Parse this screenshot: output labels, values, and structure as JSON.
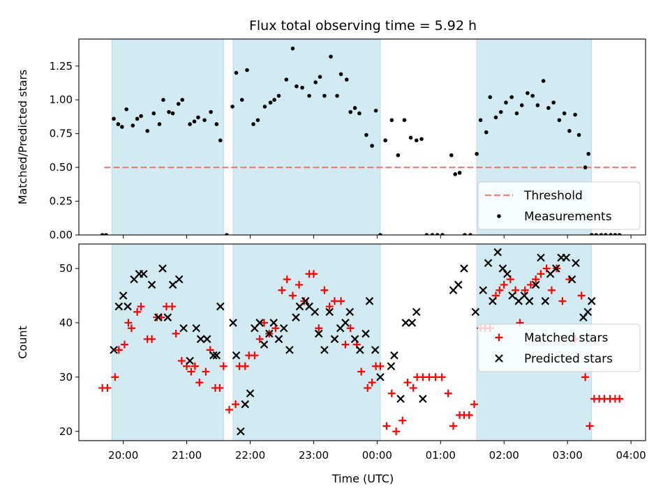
{
  "chart_data": {
    "title": "Flux total observing time = 5.92 h",
    "xlabel": "Time (UTC)",
    "x_ticks": [
      "20:00",
      "21:00",
      "22:00",
      "23:00",
      "00:00",
      "01:00",
      "02:00",
      "03:00",
      "04:00"
    ],
    "x_tick_hours": [
      20,
      21,
      22,
      23,
      24,
      25,
      26,
      27,
      28
    ],
    "xlim": [
      19.3,
      28.23
    ],
    "shaded_intervals": [
      [
        19.82,
        21.58
      ],
      [
        21.73,
        24.05
      ],
      [
        25.57,
        27.38
      ]
    ],
    "shade_color": "#add8e6",
    "grid": false,
    "panels": [
      {
        "type": "scatter",
        "ylabel": "Matched/Predicted stars",
        "ylim": [
          0,
          1.45
        ],
        "y_ticks": [
          "0.00",
          "0.25",
          "0.50",
          "0.75",
          "1.00",
          "1.25"
        ],
        "y_tick_values": [
          0,
          0.25,
          0.5,
          0.75,
          1.0,
          1.25
        ],
        "legend_placement": "lower-right",
        "threshold": {
          "name": "Threshold",
          "value": 0.5,
          "x_range": [
            19.7,
            28.08
          ],
          "color": "#f08080"
        },
        "series": [
          {
            "name": "Measurements",
            "marker": "dot",
            "color": "#000000",
            "x": [
              19.67,
              19.73,
              19.85,
              19.92,
              19.98,
              20.05,
              20.15,
              20.22,
              20.28,
              20.38,
              20.48,
              20.57,
              20.63,
              20.72,
              20.78,
              20.87,
              20.93,
              21.05,
              21.12,
              21.18,
              21.28,
              21.38,
              21.47,
              21.53,
              21.63,
              21.72,
              21.78,
              21.87,
              21.95,
              22.05,
              22.12,
              22.23,
              22.32,
              22.38,
              22.45,
              22.57,
              22.67,
              22.73,
              22.82,
              22.93,
              23.03,
              23.1,
              23.17,
              23.27,
              23.37,
              23.43,
              23.52,
              23.58,
              23.65,
              23.72,
              23.83,
              23.92,
              23.98,
              24.05,
              24.13,
              24.23,
              24.33,
              24.43,
              24.53,
              24.62,
              24.7,
              24.78,
              24.87,
              24.95,
              25.03,
              25.17,
              25.23,
              25.3,
              25.38,
              25.47,
              25.57,
              25.63,
              25.72,
              25.78,
              25.87,
              25.95,
              26.03,
              26.12,
              26.2,
              26.28,
              26.37,
              26.45,
              26.53,
              26.62,
              26.7,
              26.78,
              26.87,
              26.95,
              27.03,
              27.12,
              27.18,
              27.28,
              27.33,
              27.38,
              27.45,
              27.53,
              27.6,
              27.68,
              27.75,
              27.82
            ],
            "y": [
              0,
              0,
              0.86,
              0.82,
              0.8,
              0.93,
              0.81,
              0.86,
              0.88,
              0.77,
              0.9,
              0.82,
              1.0,
              0.91,
              0.9,
              0.97,
              1.0,
              0.82,
              0.84,
              0.87,
              0.85,
              0.91,
              0.82,
              0.7,
              0,
              0.95,
              1.2,
              1.0,
              1.22,
              0.82,
              0.85,
              0.95,
              0.98,
              1.0,
              1.03,
              1.15,
              1.38,
              1.1,
              1.09,
              1.03,
              1.13,
              1.17,
              1.03,
              1.32,
              1.03,
              1.19,
              1.15,
              0.91,
              0.94,
              0.9,
              0.74,
              0.66,
              0.92,
              0,
              0.7,
              0.85,
              0.59,
              0.85,
              0.72,
              0.7,
              0.71,
              0,
              0,
              0,
              0,
              0.59,
              0.45,
              0.46,
              0,
              0,
              0.6,
              0.85,
              0.76,
              1.02,
              0.87,
              0.91,
              0.98,
              1.02,
              0.9,
              0.96,
              1.05,
              1.03,
              0.96,
              1.14,
              0.94,
              0.98,
              0.85,
              0.9,
              0.77,
              0.89,
              0.74,
              0.5,
              0.6,
              0,
              0,
              0,
              0,
              0,
              0,
              0
            ]
          }
        ]
      },
      {
        "type": "scatter",
        "ylabel": "Count",
        "ylim": [
          18.3,
          54.5
        ],
        "y_ticks": [
          "20",
          "30",
          "40",
          "50"
        ],
        "y_tick_values": [
          20,
          30,
          40,
          50
        ],
        "legend_placement": "center-right",
        "series": [
          {
            "name": "Matched stars",
            "marker": "plus",
            "color": "#ff0000",
            "x": [
              19.67,
              19.75,
              19.87,
              19.93,
              20.02,
              20.08,
              20.13,
              20.22,
              20.28,
              20.38,
              20.45,
              20.53,
              20.6,
              20.68,
              20.77,
              20.83,
              20.92,
              21.0,
              21.07,
              21.13,
              21.2,
              21.3,
              21.37,
              21.45,
              21.52,
              21.58,
              21.67,
              21.77,
              21.83,
              21.92,
              21.98,
              22.07,
              22.15,
              22.22,
              22.3,
              22.4,
              22.5,
              22.58,
              22.67,
              22.77,
              22.85,
              22.93,
              23.0,
              23.08,
              23.17,
              23.25,
              23.33,
              23.43,
              23.5,
              23.58,
              23.68,
              23.75,
              23.85,
              23.92,
              23.98,
              24.05,
              24.15,
              24.23,
              24.3,
              24.4,
              24.48,
              24.57,
              24.63,
              24.72,
              24.82,
              24.92,
              25.02,
              25.12,
              25.2,
              25.3,
              25.37,
              25.45,
              25.53,
              25.63,
              25.7,
              25.78,
              25.87,
              25.93,
              26.0,
              26.1,
              26.18,
              26.25,
              26.33,
              26.42,
              26.5,
              26.58,
              26.67,
              26.75,
              26.83,
              26.92,
              27.03,
              27.12,
              27.22,
              27.28,
              27.35,
              27.42,
              27.5,
              27.58,
              27.67,
              27.75,
              27.82
            ],
            "y": [
              28,
              28,
              30,
              35,
              36,
              40,
              39,
              42,
              43,
              37,
              37,
              41,
              41,
              43,
              43,
              38,
              33,
              32,
              31,
              32,
              29,
              31,
              35,
              28,
              28,
              32,
              24,
              25,
              32,
              32,
              34,
              34,
              37,
              40,
              38,
              39,
              46,
              48,
              45,
              47,
              44,
              49,
              49,
              39,
              46,
              43,
              44,
              44,
              36,
              39,
              36,
              31,
              28,
              29,
              32,
              32,
              21,
              27,
              20,
              22,
              29,
              28,
              30,
              30,
              30,
              30,
              30,
              27,
              21,
              23,
              23,
              23,
              25,
              39,
              39,
              39,
              45,
              46,
              47,
              48,
              46,
              40,
              46,
              47,
              48,
              49,
              50,
              46,
              50,
              44,
              48,
              37,
              45,
              30,
              21,
              26,
              26,
              26,
              26,
              26,
              26
            ]
          },
          {
            "name": "Predicted stars",
            "marker": "x",
            "color": "#000000",
            "x": [
              19.85,
              19.93,
              20.0,
              20.07,
              20.17,
              20.25,
              20.32,
              20.45,
              20.55,
              20.62,
              20.7,
              20.78,
              20.88,
              20.95,
              21.05,
              21.15,
              21.22,
              21.32,
              21.42,
              21.47,
              21.53,
              21.73,
              21.78,
              21.85,
              21.92,
              22.0,
              22.07,
              22.15,
              22.22,
              22.3,
              22.37,
              22.45,
              22.53,
              22.62,
              22.72,
              22.78,
              22.87,
              22.93,
              23.02,
              23.08,
              23.17,
              23.25,
              23.33,
              23.42,
              23.5,
              23.57,
              23.65,
              23.73,
              23.82,
              23.88,
              23.97,
              24.05,
              24.22,
              24.27,
              24.37,
              24.45,
              24.55,
              24.62,
              24.72,
              25.2,
              25.28,
              25.37,
              25.55,
              25.67,
              25.75,
              25.82,
              25.9,
              25.98,
              26.05,
              26.13,
              26.23,
              26.32,
              26.4,
              26.5,
              26.58,
              26.65,
              26.73,
              26.82,
              26.9,
              26.98,
              27.07,
              27.13,
              27.25,
              27.32,
              27.38
            ],
            "y": [
              35,
              43,
              45,
              43,
              48,
              49,
              49,
              47,
              41,
              50,
              41,
              47,
              48,
              39,
              33,
              39,
              37,
              37,
              34,
              34,
              43,
              40,
              34,
              20,
              25,
              27,
              39,
              40,
              36,
              38,
              40,
              37,
              39,
              35,
              41,
              43,
              44,
              43,
              42,
              38,
              35,
              42,
              37,
              39,
              40,
              42,
              37,
              35,
              38,
              44,
              35,
              30,
              32,
              34,
              26,
              40,
              40,
              42,
              26,
              46,
              47,
              50,
              42,
              46,
              51,
              44,
              53,
              50,
              49,
              45,
              44,
              45,
              44,
              47,
              52,
              44,
              49,
              50,
              52,
              52,
              48,
              51,
              41,
              42,
              44
            ]
          }
        ]
      }
    ]
  }
}
